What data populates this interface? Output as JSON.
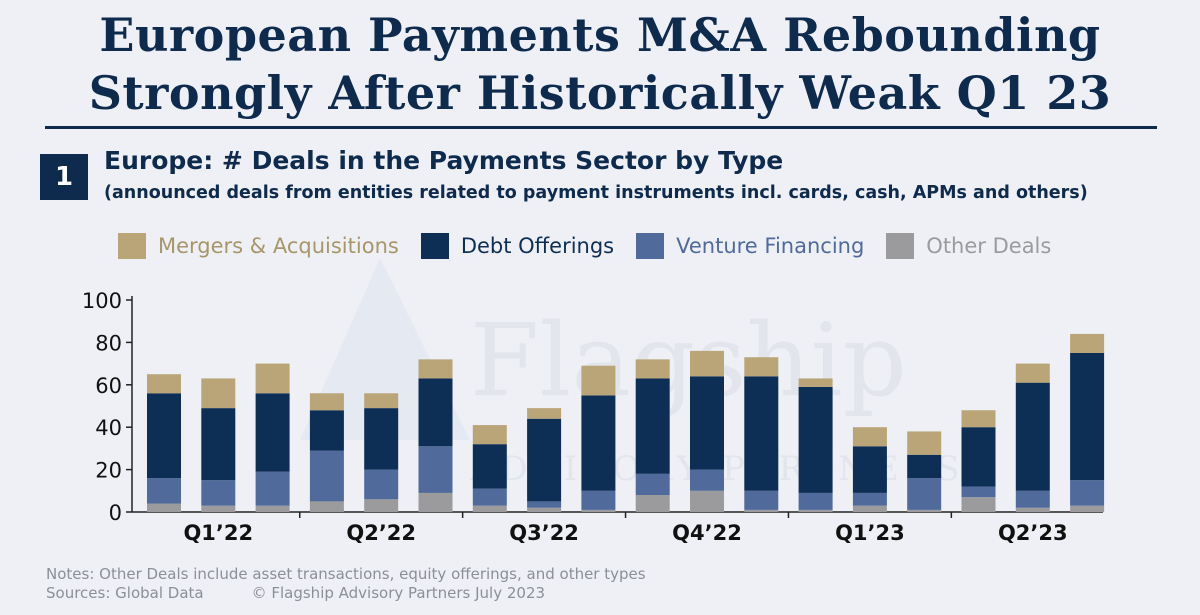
{
  "header": {
    "title_line1": "European Payments M&A Rebounding",
    "title_line2": "Strongly After Historically Weak Q1 23"
  },
  "section": {
    "number": "1",
    "subtitle": "Europe: # Deals in the Payments Sector by Type",
    "subtitle2": "(announced deals from entities related to payment instruments incl. cards, cash, APMs and others)"
  },
  "colors": {
    "ma": "#b9a577",
    "debt": "#0e2f55",
    "venture": "#4f6a9b",
    "other": "#9b9b9d",
    "ma_text": "#a8966a",
    "venture_text": "#4f6a9b",
    "other_text": "#9b9b9d",
    "debt_text": "#0e2f55"
  },
  "chart_data": {
    "type": "bar",
    "stacked": true,
    "ylim": [
      0,
      100
    ],
    "yticks": [
      0,
      20,
      40,
      60,
      80,
      100
    ],
    "quarter_labels": [
      "Q1’22",
      "Q2’22",
      "Q3’22",
      "Q4’22",
      "Q1’23",
      "Q2’23"
    ],
    "legend_placement": "top",
    "grid": false,
    "series": [
      {
        "name": "Other Deals",
        "key": "other",
        "values": [
          4,
          3,
          3,
          5,
          6,
          9,
          3,
          2,
          1,
          8,
          10,
          1,
          1,
          3,
          1,
          7,
          2,
          3
        ]
      },
      {
        "name": "Venture Financing",
        "key": "venture",
        "values": [
          12,
          12,
          16,
          24,
          14,
          22,
          8,
          3,
          9,
          10,
          10,
          9,
          8,
          6,
          15,
          5,
          8,
          12
        ]
      },
      {
        "name": "Debt Offerings",
        "key": "debt",
        "values": [
          40,
          34,
          37,
          19,
          29,
          32,
          21,
          39,
          45,
          45,
          44,
          54,
          50,
          22,
          11,
          28,
          51,
          60
        ]
      },
      {
        "name": "Mergers & Acquisitions",
        "key": "ma",
        "values": [
          9,
          14,
          14,
          8,
          7,
          9,
          9,
          5,
          14,
          9,
          12,
          9,
          4,
          9,
          11,
          8,
          9,
          9
        ]
      }
    ]
  },
  "watermark": {
    "line1": "Flagship",
    "line2": "ADVISORY PARTNERS"
  },
  "notes": {
    "line1": "Notes: Other Deals include asset transactions, equity offerings, and other types",
    "sources": "Sources: Global Data",
    "copyright": "© Flagship Advisory Partners July 2023"
  }
}
